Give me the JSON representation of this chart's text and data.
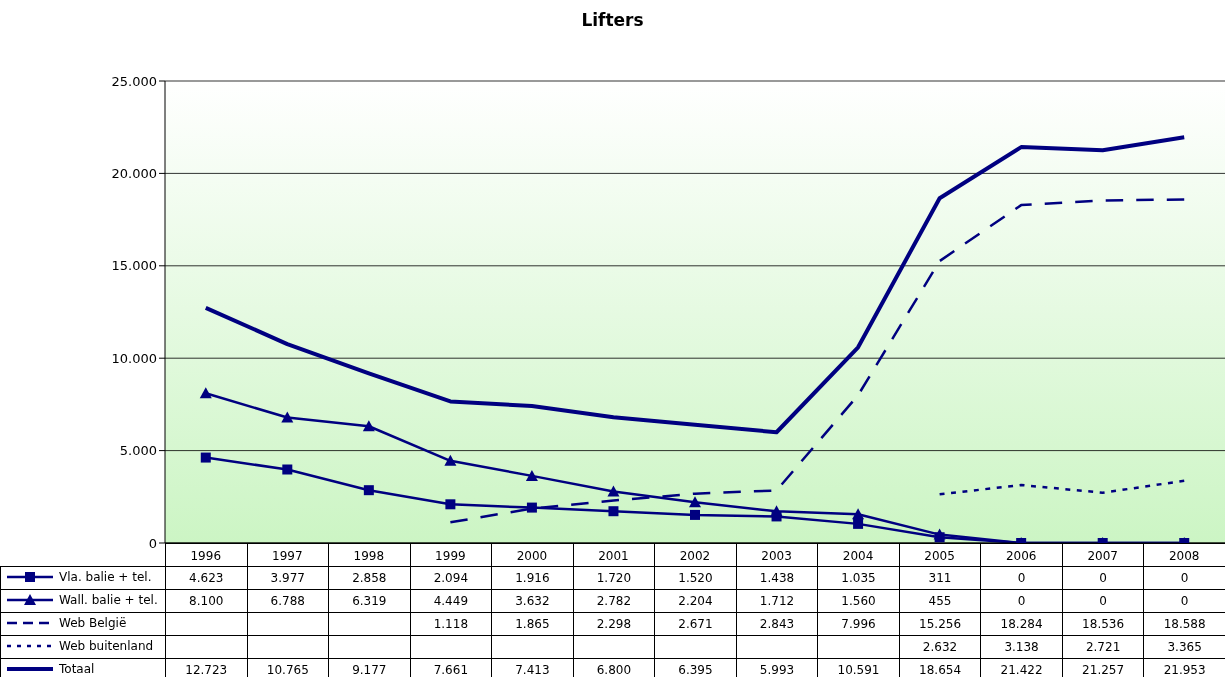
{
  "chart_data": {
    "type": "line",
    "title": "Lifters",
    "categories": [
      "1996",
      "1997",
      "1998",
      "1999",
      "2000",
      "2001",
      "2002",
      "2003",
      "2004",
      "2005",
      "2006",
      "2007",
      "2008"
    ],
    "series": [
      {
        "name": "Vla. balie + tel.",
        "color": "#000080",
        "marker": "square",
        "line_style": "solid",
        "values": [
          4623,
          3977,
          2858,
          2094,
          1916,
          1720,
          1520,
          1438,
          1035,
          311,
          0,
          0,
          0
        ],
        "value_labels": [
          "4.623",
          "3.977",
          "2.858",
          "2.094",
          "1.916",
          "1.720",
          "1.520",
          "1.438",
          "1.035",
          "311",
          "0",
          "0",
          "0"
        ]
      },
      {
        "name": "Wall. balie + tel.",
        "color": "#000080",
        "marker": "triangle",
        "line_style": "solid",
        "values": [
          8100,
          6788,
          6319,
          4449,
          3632,
          2782,
          2204,
          1712,
          1560,
          455,
          0,
          0,
          0
        ],
        "value_labels": [
          "8.100",
          "6.788",
          "6.319",
          "4.449",
          "3.632",
          "2.782",
          "2.204",
          "1.712",
          "1.560",
          "455",
          "0",
          "0",
          "0"
        ]
      },
      {
        "name": "Web België",
        "color": "#000080",
        "marker": "none",
        "line_style": "dashed",
        "values": [
          null,
          null,
          null,
          1118,
          1865,
          2298,
          2671,
          2843,
          7996,
          15256,
          18284,
          18536,
          18588
        ],
        "value_labels": [
          null,
          null,
          null,
          "1.118",
          "1.865",
          "2.298",
          "2.671",
          "2.843",
          "7.996",
          "15.256",
          "18.284",
          "18.536",
          "18.588"
        ]
      },
      {
        "name": "Web buitenland",
        "color": "#000080",
        "marker": "none",
        "line_style": "dotted",
        "values": [
          null,
          null,
          null,
          null,
          null,
          null,
          null,
          null,
          null,
          2632,
          3138,
          2721,
          3365
        ],
        "value_labels": [
          null,
          null,
          null,
          null,
          null,
          null,
          null,
          null,
          null,
          "2.632",
          "3.138",
          "2.721",
          "3.365"
        ]
      },
      {
        "name": "Totaal",
        "color": "#000080",
        "marker": "none",
        "line_style": "solid",
        "values": [
          12723,
          10765,
          9177,
          7661,
          7413,
          6800,
          6395,
          5993,
          10591,
          18654,
          21422,
          21257,
          21953
        ],
        "value_labels": [
          "12.723",
          "10.765",
          "9.177",
          "7.661",
          "7.413",
          "6.800",
          "6.395",
          "5.993",
          "10.591",
          "18.654",
          "21.422",
          "21.257",
          "21.953"
        ]
      }
    ],
    "ylim": [
      0,
      25000
    ],
    "yticks": [
      0,
      {
        "value": 5000,
        "label": "5.000"
      },
      {
        "value": 10000,
        "label": "10.000"
      },
      {
        "value": 15000,
        "label": "15.000"
      },
      {
        "value": 20000,
        "label": "20.000"
      },
      {
        "value": 25000,
        "label": "25.000"
      }
    ],
    "grid": "y",
    "legend": "bottom"
  }
}
